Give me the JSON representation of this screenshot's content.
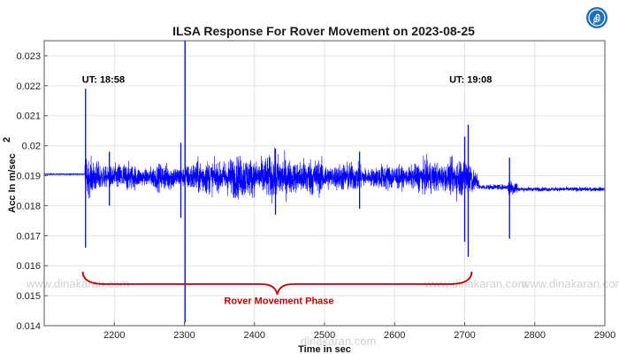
{
  "logo": {
    "glyph": "தி",
    "icon": "dinamalar-logo-icon",
    "color": "#1e6fb8"
  },
  "watermark": {
    "text_a": "www.dinakaran.com",
    "text_b": "www.dinakaran.com",
    "text_c": "www.dinakaran.com",
    "text_d": "dinakaran.com"
  },
  "chart_data": {
    "type": "line",
    "title": "ILSA Response For Rover Movement on 2023-08-25",
    "xlabel": "Time in sec",
    "ylabel": "Acc In m/sec",
    "ylabel_exp": "2",
    "xlim": [
      2100,
      2900
    ],
    "ylim": [
      0.014,
      0.0235
    ],
    "x_ticks": [
      2200,
      2300,
      2400,
      2500,
      2600,
      2700,
      2800,
      2900
    ],
    "y_ticks": [
      0.014,
      0.015,
      0.016,
      0.017,
      0.018,
      0.019,
      0.02,
      0.021,
      0.022,
      0.023
    ],
    "x_tick_labels": [
      "2200",
      "2300",
      "2400",
      "2500",
      "2600",
      "2700",
      "2800",
      "2900"
    ],
    "y_tick_labels": [
      "0.014",
      "0.015",
      "0.016",
      "0.017",
      "0.018",
      "0.019",
      "0.02",
      "0.021",
      "0.022",
      "0.023"
    ],
    "grid": true,
    "series": [
      {
        "color": "#0000ff",
        "baseline_before": 0.01905,
        "baseline_after": 0.01855,
        "segments": [
          {
            "x_start": 2100,
            "x_end": 2158,
            "center": 0.01905,
            "amplitude": 3e-05
          },
          {
            "x_start": 2158,
            "x_end": 2710,
            "center": 0.01895,
            "amplitude": 0.0007
          },
          {
            "x_start": 2710,
            "x_end": 2720,
            "center": 0.0188,
            "amplitude": 0.0004
          },
          {
            "x_start": 2720,
            "x_end": 2762,
            "center": 0.01862,
            "amplitude": 0.0001
          },
          {
            "x_start": 2762,
            "x_end": 2775,
            "center": 0.0186,
            "amplitude": 0.0003
          },
          {
            "x_start": 2775,
            "x_end": 2900,
            "center": 0.01855,
            "amplitude": 8e-05
          }
        ],
        "spikes": [
          {
            "x": 2159,
            "min": 0.0166,
            "max": 0.0219
          },
          {
            "x": 2193,
            "min": 0.018,
            "max": 0.0198
          },
          {
            "x": 2301,
            "min": 0.0141,
            "max": 0.0238
          },
          {
            "x": 2295,
            "min": 0.0176,
            "max": 0.0201
          },
          {
            "x": 2430,
            "min": 0.0177,
            "max": 0.0199
          },
          {
            "x": 2550,
            "min": 0.0179,
            "max": 0.0198
          },
          {
            "x": 2700,
            "min": 0.0168,
            "max": 0.0203
          },
          {
            "x": 2705,
            "min": 0.0163,
            "max": 0.0207
          },
          {
            "x": 2764,
            "min": 0.0169,
            "max": 0.0196
          }
        ]
      }
    ],
    "annotations": [
      {
        "text": "UT: 18:58",
        "x": 2154,
        "y": 0.0221
      },
      {
        "text": "UT: 19:08",
        "x": 2678,
        "y": 0.0221
      },
      {
        "text": "Rover Movement Phase",
        "x": 2435,
        "y": 0.01472,
        "color": "#c00000"
      }
    ],
    "brace": {
      "x_start": 2155,
      "x_end": 2710,
      "y": 0.0158,
      "color": "#c00000"
    }
  }
}
